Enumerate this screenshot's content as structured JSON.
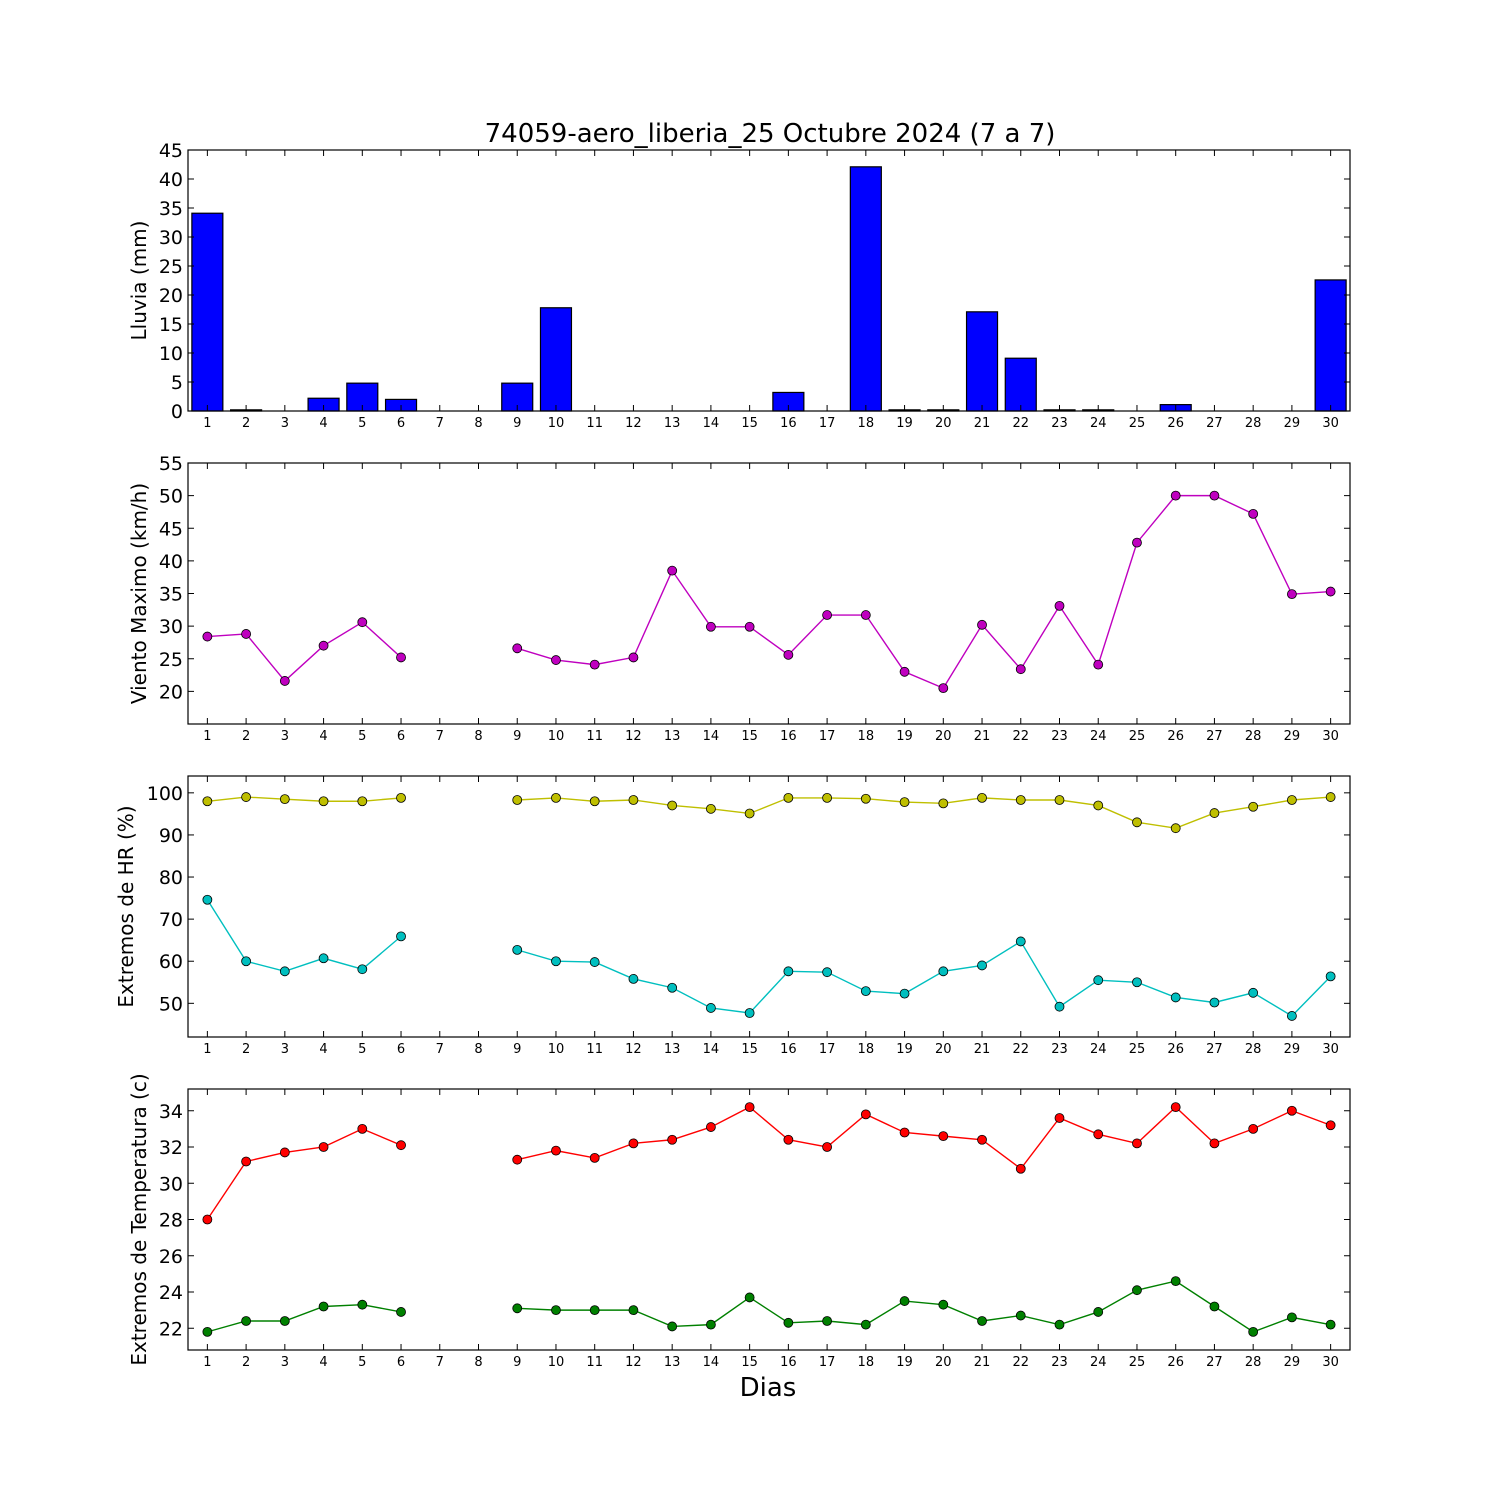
{
  "title": "74059-aero_liberia_25 Octubre 2024  (7 a 7)",
  "xlabel": "Dias",
  "chart_data": [
    {
      "type": "bar",
      "ylabel": "Lluvia (mm)",
      "ylim": [
        0,
        45
      ],
      "yticks": [
        0,
        5,
        10,
        15,
        20,
        25,
        30,
        35,
        40,
        45
      ],
      "x": [
        1,
        2,
        3,
        4,
        5,
        6,
        7,
        8,
        9,
        10,
        11,
        12,
        13,
        14,
        15,
        16,
        17,
        18,
        19,
        20,
        21,
        22,
        23,
        24,
        25,
        26,
        27,
        28,
        29,
        30
      ],
      "series": [
        {
          "color": "#0000ff",
          "values": [
            34.1,
            0.2,
            0,
            2.2,
            4.8,
            2.0,
            null,
            null,
            4.8,
            17.8,
            0,
            0,
            0,
            0,
            0,
            3.2,
            0,
            42.1,
            0.2,
            0.2,
            17.1,
            9.1,
            0.2,
            0.2,
            0,
            1.1,
            0,
            0,
            0,
            22.6
          ]
        }
      ]
    },
    {
      "type": "line",
      "ylabel": "Viento Maximo (km/h)",
      "ylim": [
        15,
        55
      ],
      "yticks": [
        20,
        25,
        30,
        35,
        40,
        45,
        50,
        55
      ],
      "x": [
        1,
        2,
        3,
        4,
        5,
        6,
        7,
        8,
        9,
        10,
        11,
        12,
        13,
        14,
        15,
        16,
        17,
        18,
        19,
        20,
        21,
        22,
        23,
        24,
        25,
        26,
        27,
        28,
        29,
        30
      ],
      "series": [
        {
          "color": "#bf00bf",
          "values": [
            28.4,
            28.8,
            21.6,
            27.0,
            30.6,
            25.2,
            null,
            null,
            26.6,
            24.8,
            24.1,
            25.2,
            38.5,
            29.9,
            29.9,
            25.6,
            31.7,
            31.7,
            23.0,
            20.5,
            30.2,
            23.4,
            33.1,
            24.1,
            42.8,
            50.0,
            50.0,
            47.2,
            34.9,
            35.3
          ]
        }
      ]
    },
    {
      "type": "line",
      "ylabel": "Extremos de HR (%)",
      "ylim": [
        42,
        104
      ],
      "yticks": [
        50,
        60,
        70,
        80,
        90,
        100
      ],
      "x": [
        1,
        2,
        3,
        4,
        5,
        6,
        7,
        8,
        9,
        10,
        11,
        12,
        13,
        14,
        15,
        16,
        17,
        18,
        19,
        20,
        21,
        22,
        23,
        24,
        25,
        26,
        27,
        28,
        29,
        30
      ],
      "series": [
        {
          "color": "#bfbf00",
          "values": [
            98,
            99,
            98.5,
            98,
            98,
            98.8,
            null,
            null,
            98.3,
            98.8,
            98,
            98.3,
            97,
            96.2,
            95.1,
            98.8,
            98.8,
            98.6,
            97.8,
            97.5,
            98.8,
            98.3,
            98.3,
            97,
            93,
            91.6,
            95.2,
            96.7,
            98.3,
            99
          ]
        },
        {
          "color": "#00bfbf",
          "values": [
            74.6,
            60,
            57.6,
            60.7,
            58.1,
            65.9,
            null,
            null,
            62.7,
            60,
            59.8,
            55.8,
            53.7,
            48.9,
            47.7,
            57.6,
            57.4,
            52.9,
            52.3,
            57.6,
            59,
            64.7,
            49.2,
            55.5,
            55,
            51.4,
            50.2,
            52.5,
            47,
            56.4
          ]
        }
      ]
    },
    {
      "type": "line",
      "ylabel": "Extremos de Temperatura (c)",
      "ylim": [
        20.8,
        35.2
      ],
      "yticks": [
        22,
        24,
        26,
        28,
        30,
        32,
        34
      ],
      "x": [
        1,
        2,
        3,
        4,
        5,
        6,
        7,
        8,
        9,
        10,
        11,
        12,
        13,
        14,
        15,
        16,
        17,
        18,
        19,
        20,
        21,
        22,
        23,
        24,
        25,
        26,
        27,
        28,
        29,
        30
      ],
      "series": [
        {
          "color": "#ff0000",
          "values": [
            28,
            31.2,
            31.7,
            32,
            33,
            32.1,
            null,
            null,
            31.3,
            31.8,
            31.4,
            32.2,
            32.4,
            33.1,
            34.2,
            32.4,
            32,
            33.8,
            32.8,
            32.6,
            32.4,
            30.8,
            33.6,
            32.7,
            32.2,
            34.2,
            32.2,
            33,
            34,
            33.2
          ]
        },
        {
          "color": "#008000",
          "values": [
            21.8,
            22.4,
            22.4,
            23.2,
            23.3,
            22.9,
            null,
            null,
            23.1,
            23,
            23,
            23,
            22.1,
            22.2,
            23.7,
            22.3,
            22.4,
            22.2,
            23.5,
            23.3,
            22.4,
            22.7,
            22.2,
            22.9,
            24.1,
            24.6,
            23.2,
            21.8,
            22.6,
            22.2
          ]
        }
      ]
    }
  ]
}
